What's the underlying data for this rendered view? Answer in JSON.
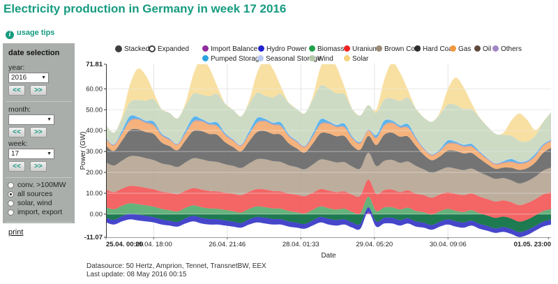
{
  "title": "Electricity production in Germany in week 17 2016",
  "usage_tips_label": "usage tips",
  "colors": {
    "accent_teal": "#169b80",
    "sidebar_bg": "#aaaeab",
    "axis": "#333333",
    "grid": "#e3e3e3"
  },
  "sidebar": {
    "header": "date selection",
    "year_label": "year:",
    "year_value": "2016",
    "month_label": "month:",
    "month_value": "",
    "week_label": "week:",
    "week_value": "17",
    "prev_label": "<<",
    "next_label": ">>",
    "radios": [
      {
        "label": "conv. >100MW",
        "selected": false
      },
      {
        "label": "all sources",
        "selected": true
      },
      {
        "label": "solar, wind",
        "selected": false
      },
      {
        "label": "import, export",
        "selected": false
      }
    ],
    "print_label": "print"
  },
  "footer": {
    "datasource": "Datasource: 50 Hertz, Amprion, Tennet, TransnetBW, EEX",
    "last_update": "Last update: 08 May 2016 00:15"
  },
  "chart_data": {
    "type": "area",
    "stacked": true,
    "mode_options": [
      {
        "label": "Stacked",
        "selected": true
      },
      {
        "label": "Expanded",
        "selected": false
      }
    ],
    "xlabel": "Date",
    "ylabel": "Power (GW)",
    "ylim": [
      -11.07,
      71.81
    ],
    "x_unit": "hours since 25.04.2016 00:00",
    "y_ticks": [
      {
        "label": "71.81",
        "value": 71.81,
        "bold": true
      },
      {
        "label": "60.00",
        "value": 60,
        "bold": false
      },
      {
        "label": "50.00",
        "value": 50,
        "bold": false
      },
      {
        "label": "40.00",
        "value": 40,
        "bold": false
      },
      {
        "label": "30.00",
        "value": 30,
        "bold": false
      },
      {
        "label": "20.00",
        "value": 20,
        "bold": false
      },
      {
        "label": "10.00",
        "value": 10,
        "bold": false
      },
      {
        "label": "0.00",
        "value": 0,
        "bold": false
      },
      {
        "label": "-11.07",
        "value": -11.07,
        "bold": true
      }
    ],
    "x_ticks": [
      {
        "label": "25.04. 00:00",
        "hour": 0,
        "bold": true,
        "anchor": "start"
      },
      {
        "label": "25.04. 18:00",
        "hour": 18,
        "bold": false,
        "anchor": "middle"
      },
      {
        "label": "26.04. 21:46",
        "hour": 45.77,
        "bold": false,
        "anchor": "middle"
      },
      {
        "label": "28.04. 01:33",
        "hour": 73.55,
        "bold": false,
        "anchor": "middle"
      },
      {
        "label": "29.04. 05:20",
        "hour": 101.33,
        "bold": false,
        "anchor": "middle"
      },
      {
        "label": "30.04. 09:06",
        "hour": 129.1,
        "bold": false,
        "anchor": "middle"
      },
      {
        "label": "01.05. 23:00",
        "hour": 167,
        "bold": true,
        "anchor": "end"
      }
    ],
    "x_hours": [
      0,
      3,
      6,
      9,
      12,
      15,
      18,
      21,
      24,
      27,
      30,
      33,
      36,
      39,
      42,
      45,
      48,
      51,
      54,
      57,
      60,
      63,
      66,
      69,
      72,
      75,
      78,
      81,
      84,
      87,
      90,
      93,
      96,
      99,
      102,
      105,
      108,
      111,
      114,
      117,
      120,
      123,
      126,
      129,
      132,
      135,
      138,
      141,
      144,
      147,
      150,
      153,
      156,
      159,
      162,
      165,
      168
    ],
    "stack_order": [
      "import_balance",
      "hydro_power",
      "biomass",
      "uranium",
      "brown_coal",
      "hard_coal",
      "gas",
      "oil",
      "others",
      "pumped_storage",
      "seasonal_storage",
      "wind",
      "solar"
    ],
    "legend_items": [
      {
        "name": "import_balance",
        "label": "Import Balance",
        "row": 1
      },
      {
        "name": "hydro_power",
        "label": "Hydro Power",
        "row": 1
      },
      {
        "name": "biomass",
        "label": "Biomass",
        "row": 1
      },
      {
        "name": "uranium",
        "label": "Uranium",
        "row": 1
      },
      {
        "name": "brown_coal",
        "label": "Brown Coal",
        "row": 1
      },
      {
        "name": "hard_coal",
        "label": "Hard Coal",
        "row": 1
      },
      {
        "name": "gas",
        "label": "Gas",
        "row": 1
      },
      {
        "name": "oil",
        "label": "Oil",
        "row": 1
      },
      {
        "name": "others",
        "label": "Others",
        "row": 1
      },
      {
        "name": "pumped_storage",
        "label": "Pumped Storage",
        "row": 2
      },
      {
        "name": "seasonal_storage",
        "label": "Seasonal Storage",
        "row": 2
      },
      {
        "name": "wind",
        "label": "Wind",
        "row": 2
      },
      {
        "name": "solar",
        "label": "Solar",
        "row": 2
      }
    ],
    "series": [
      {
        "name": "import_balance",
        "label": "Import Balance",
        "dot_color": "#8f2d9c",
        "area_color": "#a64ca6",
        "values": [
          -4,
          -5,
          -3.5,
          -2.5,
          -3,
          -3.5,
          -4,
          -5,
          -5.5,
          -6,
          -4.5,
          -3.5,
          -4.5,
          -5,
          -5,
          -5.5,
          -6,
          -6.5,
          -5,
          -4,
          -4.5,
          -5,
          -5,
          -6,
          -6.5,
          -7,
          -5.5,
          -4,
          -5,
          -5.5,
          -5,
          -6.5,
          -7,
          1,
          -6,
          -4.5,
          -4.5,
          -5.5,
          -4.5,
          -6,
          -6.5,
          -7.5,
          -6,
          -5,
          -6,
          -6.5,
          -5.5,
          -7,
          -8,
          -9,
          -8.5,
          -9.5,
          -11,
          -10,
          -8,
          -6,
          -5
        ]
      },
      {
        "name": "hydro_power",
        "label": "Hydro Power",
        "dot_color": "#2323cc",
        "area_color": "#2c2cc4",
        "values": [
          2.4,
          2.3,
          2.5,
          2.7,
          2.8,
          2.7,
          2.6,
          2.5,
          2.4,
          2.3,
          2.5,
          2.7,
          2.8,
          2.7,
          2.6,
          2.5,
          2.4,
          2.3,
          2.5,
          2.7,
          2.8,
          2.7,
          2.6,
          2.5,
          2.4,
          2.3,
          2.5,
          2.7,
          2.8,
          2.7,
          2.6,
          2.5,
          2.4,
          2.3,
          2.5,
          2.7,
          2.8,
          2.7,
          2.6,
          2.5,
          2.4,
          2.3,
          2.4,
          2.5,
          2.6,
          2.5,
          2.4,
          2.4,
          2.3,
          2.2,
          2.3,
          2.4,
          2.4,
          2.4,
          2.3,
          2.4,
          2.4
        ]
      },
      {
        "name": "biomass",
        "label": "Biomass",
        "dot_color": "#22a14c",
        "area_color": "#4fa96a",
        "area_color_below_zero": "#1e7a50",
        "constant": 5.0
      },
      {
        "name": "uranium",
        "label": "Uranium",
        "dot_color": "#ee2222",
        "area_color": "#f25050",
        "values": [
          8.4,
          8.3,
          8.2,
          8.3,
          8.5,
          8.4,
          8.3,
          8.3,
          8.4,
          8.3,
          8.2,
          8.3,
          8.5,
          8.4,
          8.3,
          8.3,
          8.4,
          8.3,
          8.2,
          8.3,
          8.5,
          8.4,
          8.3,
          8.3,
          8.4,
          8.3,
          8.2,
          8.3,
          8.5,
          8.4,
          8.3,
          8.3,
          8.4,
          8.3,
          8.2,
          8.3,
          8.5,
          8.4,
          8.3,
          8.3,
          8.2,
          8.1,
          8,
          8,
          8.1,
          8.1,
          8,
          8,
          7.9,
          7.8,
          7.8,
          7.8,
          7.9,
          7.9,
          7.8,
          8,
          8.1
        ]
      },
      {
        "name": "brown_coal",
        "label": "Brown Coal",
        "dot_color": "#9c8b76",
        "area_color": "#b3a28e",
        "values": [
          13,
          12.7,
          13.4,
          14.2,
          14.4,
          14.2,
          14,
          13.5,
          13.3,
          13,
          13.6,
          14.3,
          14.5,
          14.3,
          14.1,
          13.6,
          13.3,
          13,
          13.6,
          14.3,
          14.5,
          14.3,
          14.1,
          13.6,
          13.2,
          12.9,
          13.5,
          14.2,
          14.4,
          14.2,
          14,
          13.5,
          13.1,
          12.8,
          13.4,
          14,
          14.2,
          14,
          13.8,
          13.3,
          12.3,
          11.9,
          11.7,
          11.9,
          12.1,
          12,
          11.9,
          11.7,
          11.2,
          10.9,
          10.7,
          10.5,
          10.4,
          10.5,
          10.8,
          11.4,
          11.8
        ]
      },
      {
        "name": "hard_coal",
        "label": "Hard Coal",
        "dot_color": "#2e2e2e",
        "area_color": "#616161",
        "values": [
          8,
          7,
          9.5,
          12.5,
          13,
          12.5,
          12.5,
          10,
          9,
          8,
          10.5,
          13,
          13.5,
          13,
          13,
          10.5,
          9,
          8,
          10.5,
          13,
          13.5,
          13,
          13,
          10.5,
          9,
          8,
          10,
          12.5,
          13,
          12.5,
          12.5,
          10,
          9,
          8,
          10,
          12.5,
          13,
          12.5,
          12,
          9.5,
          7,
          6,
          6.5,
          8,
          8.5,
          8,
          7.5,
          6.5,
          5.5,
          4.8,
          5,
          6,
          6.5,
          6.2,
          6.8,
          8.5,
          9.5
        ]
      },
      {
        "name": "gas",
        "label": "Gas",
        "dot_color": "#f2993f",
        "area_color": "#f4a76a",
        "values": [
          3,
          2.6,
          3.3,
          4.3,
          4.6,
          4.4,
          4.1,
          3.4,
          3,
          2.6,
          3.3,
          4.3,
          4.6,
          4.4,
          4.1,
          3.4,
          3,
          2.6,
          3.3,
          4.3,
          4.6,
          4.4,
          4.1,
          3.4,
          3,
          2.6,
          3.3,
          4.3,
          4.6,
          4.4,
          4.1,
          3.4,
          3,
          2.6,
          3.3,
          4.3,
          4.6,
          4.4,
          4.1,
          3.4,
          2.6,
          2.3,
          2.5,
          3.2,
          3.4,
          3.2,
          3,
          2.7,
          2.3,
          2.1,
          2.2,
          2.7,
          2.9,
          2.8,
          2.9,
          3.3,
          3.1
        ]
      },
      {
        "name": "oil",
        "label": "Oil",
        "dot_color": "#5f4a3c",
        "area_color": "#6a5446",
        "constant": 0.1
      },
      {
        "name": "others",
        "label": "Others",
        "dot_color": "#a287c4",
        "area_color": "#a78fc6",
        "constant": 0.3
      },
      {
        "name": "pumped_storage",
        "label": "Pumped Storage",
        "dot_color": "#2da3e0",
        "area_color": "#43abe6",
        "values": [
          0.3,
          0.1,
          1.1,
          2,
          0.8,
          0.6,
          1.4,
          0.5,
          0.3,
          0.1,
          1.1,
          2,
          0.8,
          0.6,
          1.4,
          0.5,
          0.3,
          0.1,
          1.1,
          2,
          0.8,
          0.6,
          1.4,
          0.5,
          0.3,
          0.1,
          1.1,
          2,
          0.8,
          0.6,
          1.4,
          0.5,
          0.3,
          0.1,
          1.1,
          2,
          0.8,
          0.6,
          1.4,
          0.5,
          0.2,
          0.1,
          0.5,
          1.3,
          0.6,
          0.5,
          0.9,
          0.4,
          0.2,
          0.1,
          0.4,
          1.1,
          0.5,
          0.4,
          0.8,
          0.4,
          0.3
        ]
      },
      {
        "name": "seasonal_storage",
        "label": "Seasonal Storage",
        "dot_color": "#b9c9f0",
        "area_color": "#c6d4f3",
        "constant": 0.15
      },
      {
        "name": "wind",
        "label": "Wind",
        "dot_color": "#b5c9a8",
        "area_color": "#c6d6bc",
        "values": [
          6,
          5.5,
          5.5,
          6.5,
          8,
          9.5,
          10.5,
          11.5,
          12,
          12,
          11.5,
          11,
          11.5,
          12.5,
          13.5,
          14,
          14,
          13.5,
          13,
          12,
          11,
          12,
          13.5,
          15,
          15,
          15.5,
          16,
          16,
          15.5,
          15,
          14,
          13,
          12.5,
          11.5,
          10.5,
          10,
          10.5,
          11.5,
          12.5,
          13.5,
          14.5,
          15.5,
          16.5,
          17,
          17.5,
          17,
          16.5,
          16,
          15,
          14,
          12.5,
          11,
          10,
          9,
          8.5,
          10.5,
          13
        ]
      },
      {
        "name": "solar",
        "label": "Solar",
        "dot_color": "#f7d37f",
        "area_color": "#f7dc96",
        "values": [
          0,
          0,
          1.2,
          8.3,
          15,
          12,
          3.3,
          0,
          0,
          0,
          1.4,
          9.4,
          17,
          13.6,
          3.7,
          0,
          0,
          0,
          1.4,
          9.4,
          17,
          13.6,
          3.7,
          0,
          0,
          0,
          1.3,
          8.8,
          16,
          12.8,
          3.5,
          0,
          0,
          0,
          1.4,
          9.4,
          17,
          13.6,
          3.7,
          0,
          0,
          0,
          1,
          7.2,
          13,
          10.4,
          2.9,
          0,
          0,
          0,
          1,
          7.2,
          13,
          10.4,
          2.9,
          0,
          0
        ]
      }
    ]
  }
}
